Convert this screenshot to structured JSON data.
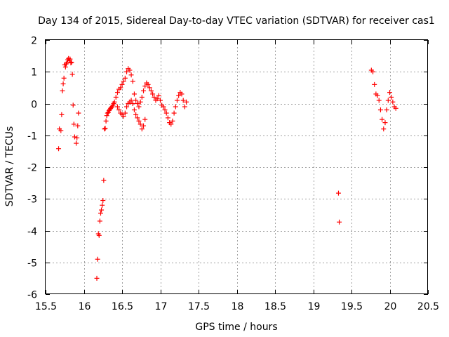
{
  "chart_data": {
    "type": "scatter",
    "title": "Day 134 of 2015, Sidereal Day-to-day VTEC variation (SDTVAR) for receiver cas1",
    "xlabel": "GPS time / hours",
    "ylabel": "SDTVAR / TECUs",
    "xlim": [
      15.5,
      20.5
    ],
    "ylim": [
      -6,
      2
    ],
    "xticks": [
      "15.5",
      "16",
      "16.5",
      "17",
      "17.5",
      "18",
      "18.5",
      "19",
      "19.5",
      "20",
      "20.5"
    ],
    "yticks": [
      "2",
      "1",
      "0",
      "-1",
      "-2",
      "-3",
      "-4",
      "-5",
      "-6"
    ],
    "grid": true,
    "marker": "+",
    "color": "#ff0000",
    "series": [
      {
        "name": "SDTVAR",
        "x": [
          15.67,
          15.68,
          15.7,
          15.71,
          15.72,
          15.73,
          15.74,
          15.75,
          15.76,
          15.77,
          15.78,
          15.79,
          15.8,
          15.81,
          15.82,
          15.83,
          15.84,
          15.85,
          15.86,
          15.87,
          15.88,
          15.9,
          15.91,
          15.92,
          15.93,
          16.17,
          16.18,
          16.19,
          16.2,
          16.21,
          16.22,
          16.23,
          16.24,
          16.25,
          16.26,
          16.27,
          16.28,
          16.29,
          16.3,
          16.31,
          16.32,
          16.33,
          16.34,
          16.35,
          16.36,
          16.37,
          16.38,
          16.39,
          16.4,
          16.42,
          16.44,
          16.46,
          16.48,
          16.5,
          16.52,
          16.54,
          16.56,
          16.58,
          16.6,
          16.62,
          16.64,
          16.66,
          16.68,
          16.7,
          16.72,
          16.74,
          16.76,
          16.78,
          16.8,
          16.82,
          16.84,
          16.86,
          16.44,
          16.46,
          16.48,
          16.5,
          16.52,
          16.54,
          16.56,
          16.58,
          16.6,
          16.62,
          16.64,
          16.66,
          16.68,
          16.7,
          16.72,
          16.74,
          16.76,
          16.78,
          16.8,
          16.88,
          16.9,
          16.92,
          16.94,
          16.96,
          16.98,
          17.0,
          17.02,
          17.04,
          17.06,
          17.08,
          17.1,
          17.12,
          17.14,
          17.16,
          17.18,
          17.2,
          17.22,
          17.24,
          17.26,
          17.28,
          17.3,
          17.32,
          17.34,
          19.33,
          19.34,
          19.76,
          19.78,
          19.8,
          19.82,
          19.84,
          19.86,
          19.88,
          19.9,
          19.92,
          19.94,
          19.96,
          19.98,
          20.0,
          20.02,
          20.04,
          20.06,
          20.08
        ],
        "y": [
          -1.42,
          -0.8,
          -0.85,
          -0.35,
          0.4,
          0.62,
          0.8,
          1.22,
          1.15,
          1.25,
          1.3,
          1.38,
          1.42,
          1.35,
          1.4,
          1.28,
          1.3,
          0.92,
          -0.05,
          -0.65,
          -1.05,
          -1.25,
          -1.08,
          -0.7,
          -0.3,
          -5.5,
          -4.9,
          -4.1,
          -4.15,
          -3.7,
          -3.45,
          -3.35,
          -3.2,
          -3.05,
          -2.42,
          -0.8,
          -0.78,
          -0.55,
          -0.38,
          -0.3,
          -0.28,
          -0.22,
          -0.18,
          -0.15,
          -0.12,
          -0.1,
          -0.05,
          0.0,
          0.05,
          0.2,
          0.35,
          0.45,
          0.5,
          0.6,
          0.7,
          0.8,
          1.0,
          1.1,
          1.05,
          0.9,
          0.7,
          0.3,
          0.1,
          0.0,
          -0.1,
          0.05,
          0.2,
          0.4,
          0.55,
          0.65,
          0.6,
          0.5,
          -0.1,
          -0.2,
          -0.3,
          -0.35,
          -0.4,
          -0.3,
          -0.1,
          0.0,
          0.05,
          0.1,
          0.0,
          -0.2,
          -0.35,
          -0.45,
          -0.55,
          -0.65,
          -0.8,
          -0.7,
          -0.5,
          0.4,
          0.3,
          0.2,
          0.1,
          0.15,
          0.25,
          0.1,
          -0.05,
          -0.1,
          -0.2,
          -0.3,
          -0.45,
          -0.6,
          -0.65,
          -0.55,
          -0.3,
          -0.1,
          0.1,
          0.25,
          0.35,
          0.3,
          0.1,
          -0.1,
          0.05,
          -2.82,
          -3.73,
          1.05,
          1.0,
          0.6,
          0.3,
          0.25,
          0.1,
          -0.2,
          -0.5,
          -0.8,
          -0.6,
          -0.2,
          0.1,
          0.35,
          0.2,
          0.05,
          -0.1,
          -0.15
        ]
      }
    ]
  }
}
